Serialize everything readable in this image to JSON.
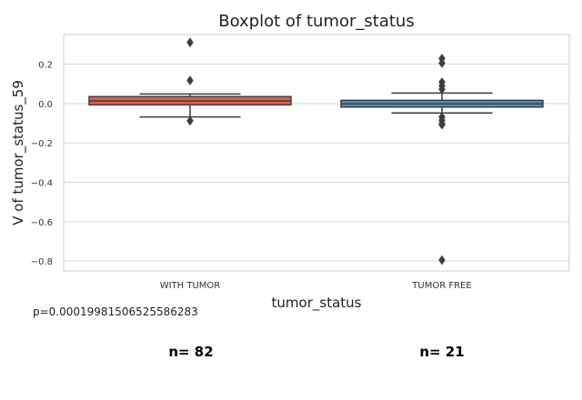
{
  "chart_data": {
    "type": "box",
    "title": "Boxplot of tumor_status",
    "xlabel": "tumor_status",
    "ylabel": "V of tumor_status_59",
    "ylim": [
      -0.85,
      0.35
    ],
    "yticks": [
      0.2,
      0.0,
      -0.2,
      -0.4,
      -0.6,
      -0.8
    ],
    "ytick_labels": [
      "0.2",
      "0.0",
      "−0.2",
      "−0.4",
      "−0.6",
      "−0.8"
    ],
    "grid": true,
    "categories": [
      "WITH TUMOR",
      "TUMOR FREE"
    ],
    "boxes": [
      {
        "category": "WITH TUMOR",
        "color": "#d9604e",
        "whisker_low": -0.068,
        "q1": -0.007,
        "median": 0.013,
        "q3": 0.035,
        "whisker_high": 0.048,
        "outliers": [
          0.31,
          0.117,
          -0.088
        ]
      },
      {
        "category": "TUMOR FREE",
        "color": "#4f8fc1",
        "whisker_low": -0.048,
        "q1": -0.018,
        "median": -0.002,
        "q3": 0.016,
        "whisker_high": 0.053,
        "outliers": [
          0.228,
          0.205,
          0.108,
          0.09,
          0.072,
          -0.068,
          -0.085,
          -0.102,
          -0.108,
          -0.795
        ]
      }
    ]
  },
  "pvalue_text": "p=0.00019981506525586283",
  "counts": [
    "n= 82",
    "n= 21"
  ]
}
